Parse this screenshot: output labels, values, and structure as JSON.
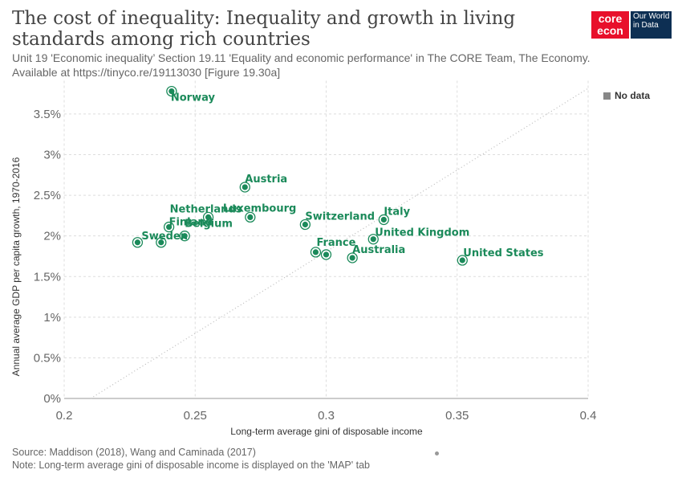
{
  "header": {
    "title": "The cost of inequality: Inequality and growth in living standards among rich countries",
    "subtitle": "Unit 19 'Economic inequality’ Section 19.11 'Equality and economic performance' in The CORE Team, The Economy. Available at https://tinyco.re/19113030 [Figure 19.30a]"
  },
  "logo": {
    "core_line1": "core",
    "core_line2": "econ",
    "owid_line1": "Our World",
    "owid_line2": "in Data"
  },
  "legend": {
    "no_data": "No data"
  },
  "footer": {
    "source": "Source: Maddison (2018), Wang and Caminada (2017)",
    "note": "Note: Long-term average gini of disposable income is displayed on the 'MAP' tab"
  },
  "colors": {
    "point": "#1b8a5a",
    "label": "#1b8a5a",
    "grid": "#dddddd",
    "diagonal": "#bbbbbb"
  },
  "chart_data": {
    "type": "scatter",
    "xlabel": "Long-term average gini of disposable income",
    "ylabel": "Annual average GDP per capita growth, 1970-2016",
    "xlim": [
      0.2,
      0.4
    ],
    "ylim": [
      0,
      3.85
    ],
    "x_ticks": [
      0.2,
      0.25,
      0.3,
      0.35,
      0.4
    ],
    "x_tick_labels": [
      "0.2",
      "0.25",
      "0.3",
      "0.35",
      "0.4"
    ],
    "y_ticks": [
      0,
      0.5,
      1,
      1.5,
      2,
      2.5,
      3,
      3.5
    ],
    "y_tick_labels": [
      "0%",
      "0.5%",
      "1%",
      "1.5%",
      "2%",
      "2.5%",
      "3%",
      "3.5%"
    ],
    "grid": "horizontal and vertical dashed",
    "reference_line": "dotted diagonal",
    "points": [
      {
        "label": "Norway",
        "x": 0.241,
        "y": 3.78
      },
      {
        "label": "Austria",
        "x": 0.269,
        "y": 2.6
      },
      {
        "label": "Luxembourg",
        "x": 0.271,
        "y": 2.23
      },
      {
        "label": "Netherlands",
        "x": 0.255,
        "y": 2.23
      },
      {
        "label": "Finland",
        "x": 0.24,
        "y": 2.11
      },
      {
        "label": "Belgium",
        "x": 0.246,
        "y": 2.0
      },
      {
        "label": "Sweden",
        "x": 0.228,
        "y": 1.92
      },
      {
        "label": "",
        "x": 0.237,
        "y": 1.92
      },
      {
        "label": "Switzerland",
        "x": 0.292,
        "y": 2.14
      },
      {
        "label": "Italy",
        "x": 0.322,
        "y": 2.2
      },
      {
        "label": "United Kingdom",
        "x": 0.318,
        "y": 1.96
      },
      {
        "label": "France",
        "x": 0.296,
        "y": 1.8
      },
      {
        "label": "",
        "x": 0.3,
        "y": 1.77
      },
      {
        "label": "Australia",
        "x": 0.31,
        "y": 1.73
      },
      {
        "label": "United States",
        "x": 0.352,
        "y": 1.7
      }
    ]
  }
}
